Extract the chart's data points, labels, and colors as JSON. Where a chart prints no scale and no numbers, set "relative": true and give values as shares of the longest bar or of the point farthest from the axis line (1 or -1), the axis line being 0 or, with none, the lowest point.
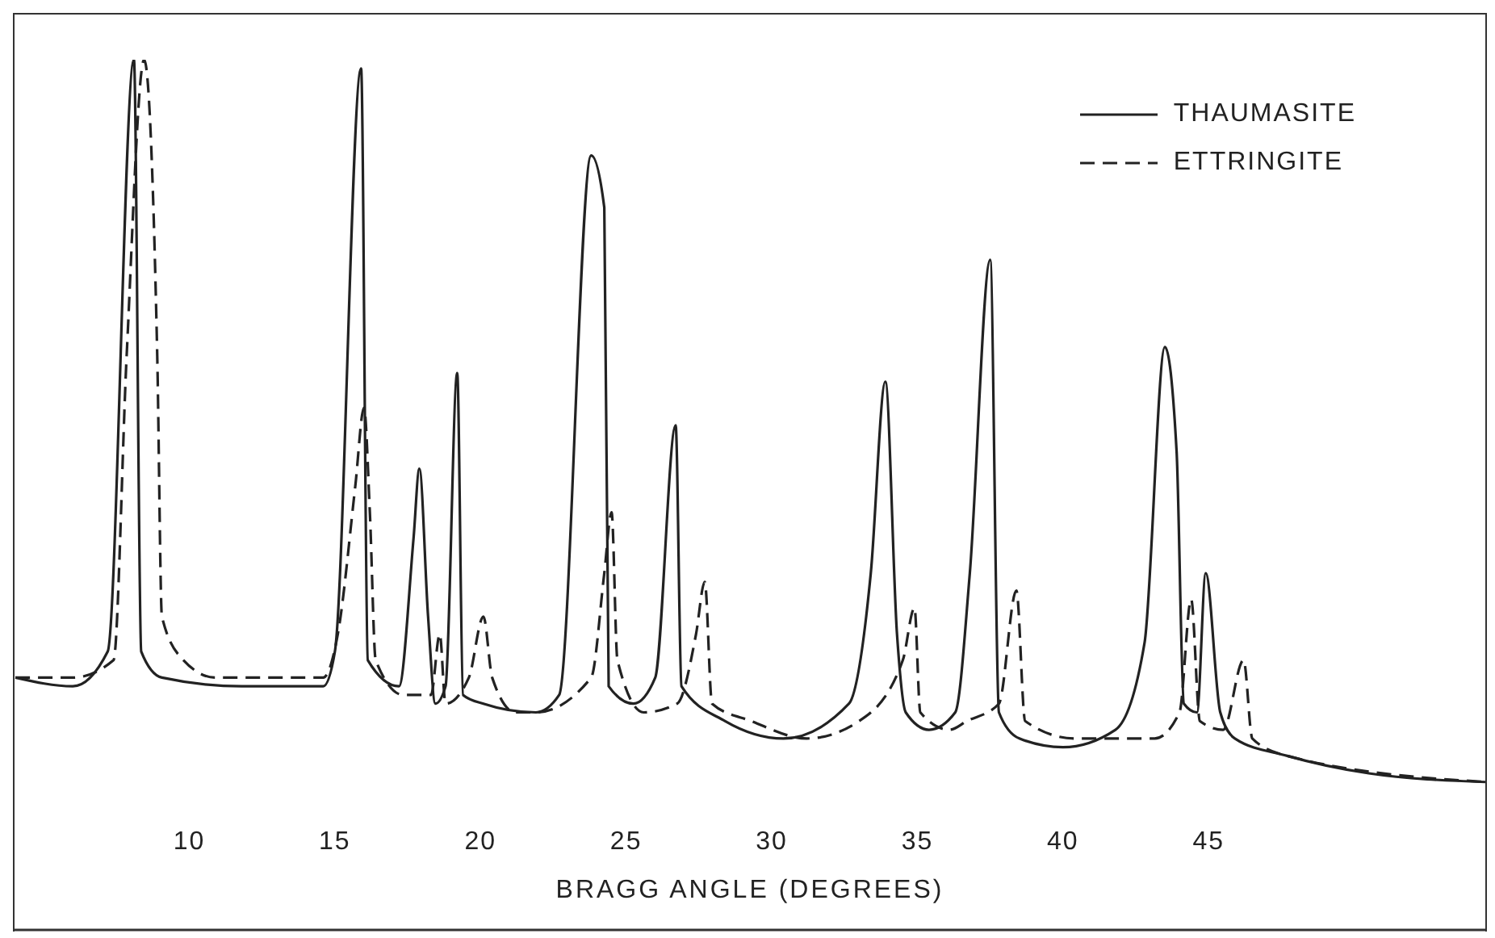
{
  "chart_data": {
    "type": "line",
    "relative": true,
    "xlabel": "BRAGG ANGLE (DEGREES)",
    "xlim": [
      4,
      54.5
    ],
    "xticks": [
      10,
      15,
      20,
      25,
      30,
      35,
      40,
      45
    ],
    "legend": "top right",
    "marker": "none",
    "series": [
      {
        "name": "THAUMASITE",
        "color": "#222222",
        "line_style": "solid",
        "x": [
          4.03,
          6.0,
          7.2,
          8.1,
          8.35,
          9.06,
          11.8,
          14.6,
          15.0,
          15.9,
          16.13,
          17.2,
          17.7,
          17.9,
          18.2,
          18.45,
          18.8,
          19.2,
          19.4,
          20.1,
          21.9,
          22.7,
          23.8,
          24.25,
          24.4,
          25.25,
          26.0,
          26.7,
          26.9,
          28.4,
          30.4,
          32.65,
          33.4,
          33.9,
          34.3,
          34.6,
          35.4,
          36.3,
          36.8,
          37.5,
          37.8,
          38.5,
          40.0,
          41.8,
          42.8,
          43.5,
          43.9,
          44.15,
          44.6,
          44.9,
          45.4,
          45.9,
          47.7,
          50.5,
          54.5
        ],
        "values": [
          0.29,
          0.28,
          0.32,
          1.0,
          0.32,
          0.29,
          0.28,
          0.28,
          0.32,
          0.99,
          0.31,
          0.28,
          0.45,
          0.53,
          0.36,
          0.26,
          0.28,
          0.64,
          0.27,
          0.26,
          0.25,
          0.27,
          0.89,
          0.83,
          0.28,
          0.26,
          0.29,
          0.58,
          0.28,
          0.24,
          0.22,
          0.26,
          0.41,
          0.63,
          0.34,
          0.25,
          0.23,
          0.25,
          0.41,
          0.77,
          0.25,
          0.22,
          0.21,
          0.23,
          0.33,
          0.67,
          0.55,
          0.26,
          0.25,
          0.41,
          0.25,
          0.22,
          0.2,
          0.18,
          0.17
        ]
      },
      {
        "name": "ETTRINGITE",
        "color": "#222222",
        "line_style": "dashed",
        "x": [
          4.03,
          6.0,
          7.4,
          7.85,
          8.45,
          8.9,
          9.06,
          9.8,
          10.9,
          14.6,
          15.1,
          15.7,
          16.0,
          16.2,
          16.4,
          17.35,
          18.3,
          18.6,
          18.8,
          19.6,
          20.1,
          20.4,
          21.2,
          21.9,
          23.8,
          24.25,
          24.5,
          24.7,
          25.6,
          26.75,
          27.4,
          27.7,
          27.95,
          29.3,
          31.2,
          33.0,
          34.5,
          34.9,
          35.1,
          36.1,
          36.7,
          37.8,
          38.4,
          38.7,
          40.4,
          43.15,
          44.0,
          44.4,
          44.7,
          45.5,
          46.2,
          46.5,
          47.7,
          54.5
        ],
        "values": [
          0.29,
          0.29,
          0.31,
          0.66,
          1.0,
          0.66,
          0.36,
          0.31,
          0.29,
          0.29,
          0.34,
          0.51,
          0.6,
          0.48,
          0.31,
          0.27,
          0.27,
          0.34,
          0.26,
          0.29,
          0.36,
          0.29,
          0.25,
          0.25,
          0.29,
          0.41,
          0.48,
          0.31,
          0.25,
          0.26,
          0.34,
          0.4,
          0.26,
          0.24,
          0.22,
          0.24,
          0.31,
          0.37,
          0.25,
          0.23,
          0.24,
          0.26,
          0.39,
          0.24,
          0.22,
          0.22,
          0.25,
          0.38,
          0.24,
          0.23,
          0.31,
          0.22,
          0.2,
          0.17
        ]
      }
    ]
  }
}
